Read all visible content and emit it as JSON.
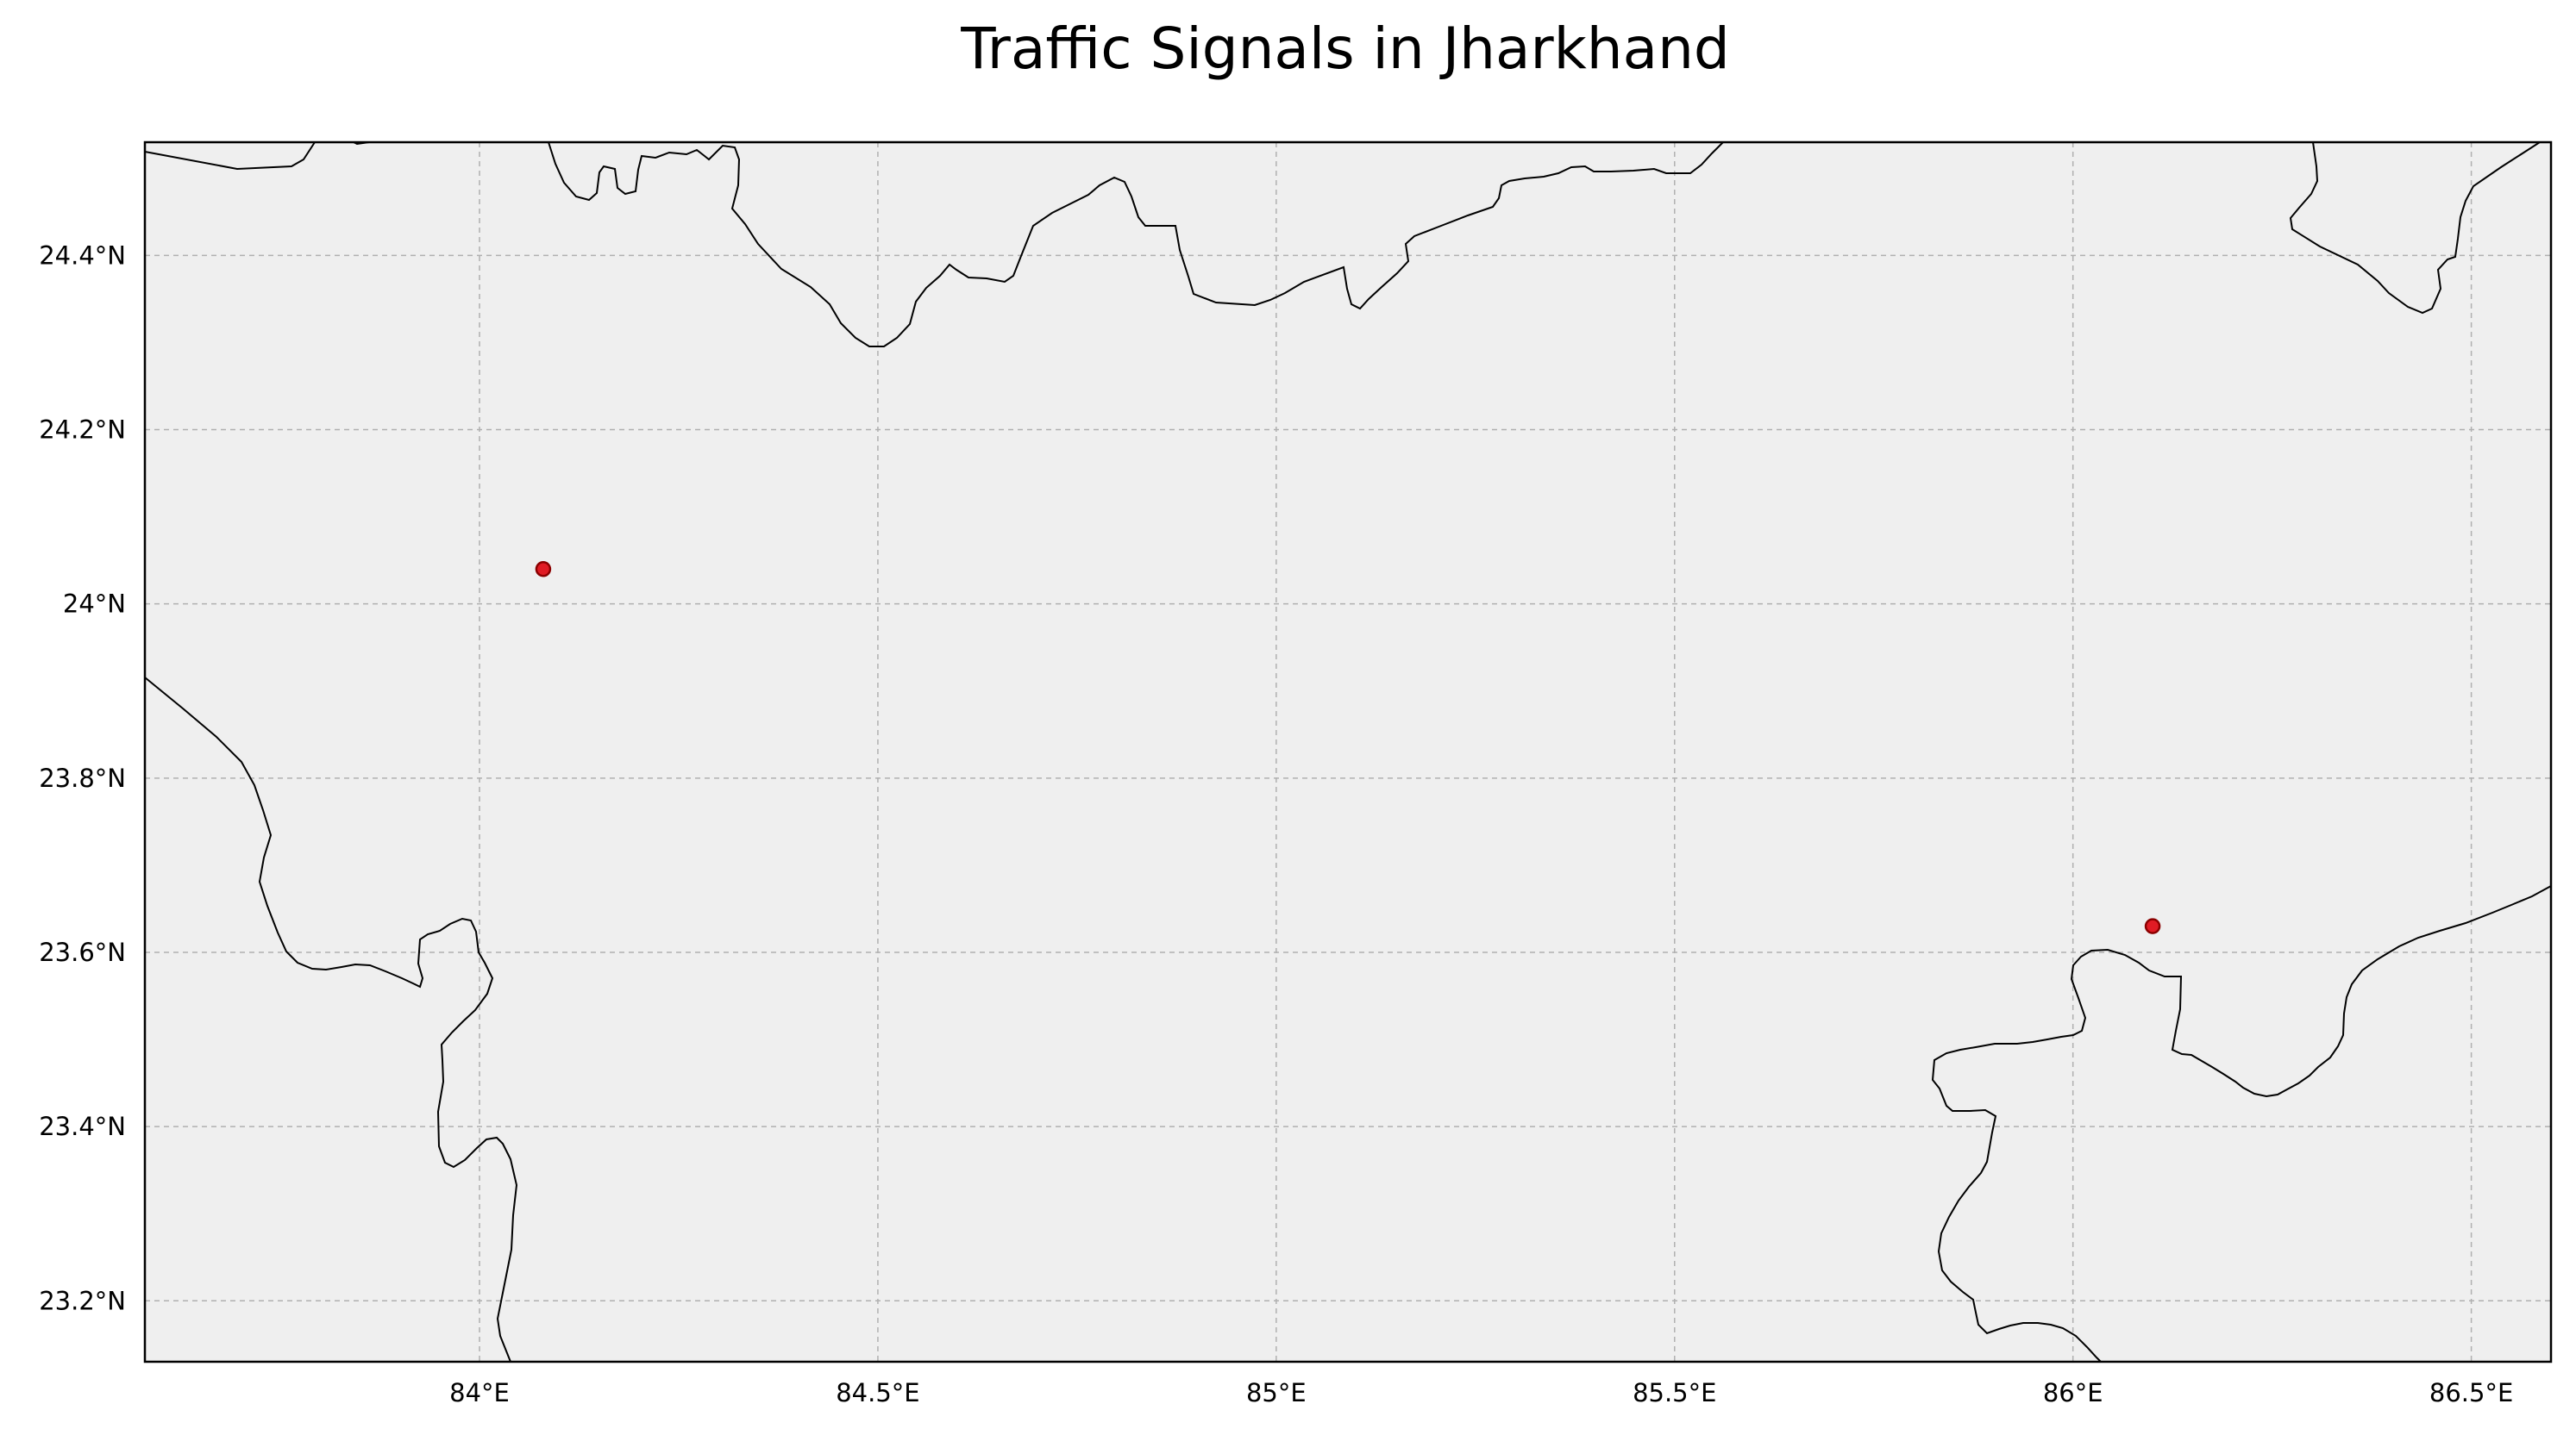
{
  "title": "Traffic Signals in Jharkhand",
  "colors": {
    "background": "#efefef",
    "frame": "#000000",
    "grid": "#b0b0b0",
    "boundary": "#000000",
    "marker_fill": "#e01b24",
    "marker_edge": "#8b0000"
  },
  "map": {
    "lon_range": [
      83.58,
      86.6
    ],
    "lat_range": [
      23.13,
      24.53
    ],
    "grid": true,
    "lon_ticks": [
      {
        "value": 84.0,
        "label": "84°E"
      },
      {
        "value": 84.5,
        "label": "84.5°E"
      },
      {
        "value": 85.0,
        "label": "85°E"
      },
      {
        "value": 85.5,
        "label": "85.5°E"
      },
      {
        "value": 86.0,
        "label": "86°E"
      },
      {
        "value": 86.5,
        "label": "86.5°E"
      }
    ],
    "lat_ticks": [
      {
        "value": 23.2,
        "label": "23.2°N"
      },
      {
        "value": 23.4,
        "label": "23.4°N"
      },
      {
        "value": 23.6,
        "label": "23.6°N"
      },
      {
        "value": 24.0,
        "label": "24°N"
      },
      {
        "value": 23.8,
        "label": "23.8°N"
      },
      {
        "value": 24.2,
        "label": "24.2°N"
      },
      {
        "value": 24.4,
        "label": "24.4°N"
      }
    ]
  },
  "chart_data": {
    "type": "scatter",
    "title": "Traffic Signals in Jharkhand",
    "xlabel": "",
    "ylabel": "",
    "xlim": [
      83.58,
      86.6
    ],
    "ylim": [
      23.13,
      24.53
    ],
    "points": [
      {
        "lon": 84.08,
        "lat": 24.04
      },
      {
        "lon": 86.1,
        "lat": 23.63
      }
    ]
  }
}
